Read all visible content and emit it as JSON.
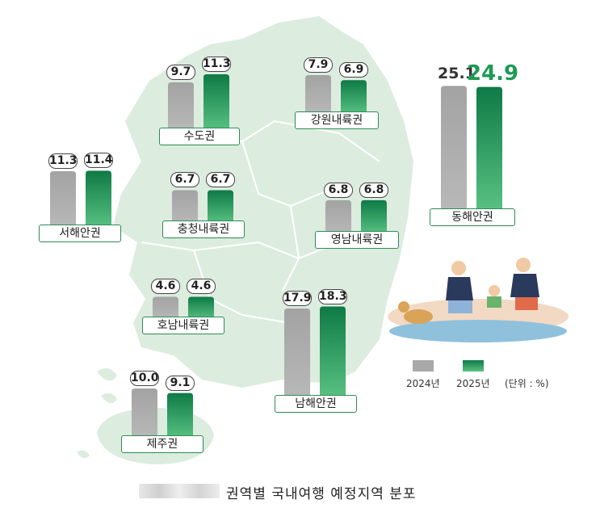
{
  "chart_data": {
    "type": "bar",
    "title": "권역별 국내여행 예정지역 분포",
    "unit_note": "(단위 : %)",
    "series": [
      {
        "name": "2024년",
        "color": "#a9a9a9"
      },
      {
        "name": "2025년",
        "color": "#1e8e4e"
      }
    ],
    "regions": [
      {
        "key": "sudo",
        "label": "수도권",
        "v2024": 9.7,
        "v2025": 11.3,
        "t2024": "9.7",
        "t2025": "11.3"
      },
      {
        "key": "gangwon",
        "label": "강원내륙권",
        "v2024": 7.9,
        "v2025": 6.9,
        "t2024": "7.9",
        "t2025": "6.9"
      },
      {
        "key": "donghae",
        "label": "동해안권",
        "v2024": 25.1,
        "v2025": 24.9,
        "t2024": "25.1",
        "t2025": "24.9"
      },
      {
        "key": "seohae",
        "label": "서해안권",
        "v2024": 11.3,
        "v2025": 11.4,
        "t2024": "11.3",
        "t2025": "11.4"
      },
      {
        "key": "chungcheong",
        "label": "충청내륙권",
        "v2024": 6.7,
        "v2025": 6.7,
        "t2024": "6.7",
        "t2025": "6.7"
      },
      {
        "key": "yeongnam",
        "label": "영남내륙권",
        "v2024": 6.8,
        "v2025": 6.8,
        "t2024": "6.8",
        "t2025": "6.8"
      },
      {
        "key": "honam",
        "label": "호남내륙권",
        "v2024": 4.6,
        "v2025": 4.6,
        "t2024": "4.6",
        "t2025": "4.6"
      },
      {
        "key": "namhae",
        "label": "남해안권",
        "v2024": 17.9,
        "v2025": 18.3,
        "t2024": "17.9",
        "t2025": "18.3"
      },
      {
        "key": "jeju",
        "label": "제주권",
        "v2024": 10.0,
        "v2025": 9.1,
        "t2024": "10.0",
        "t2025": "9.1"
      }
    ]
  },
  "legend": {
    "y2024": "2024년",
    "y2025": "2025년",
    "unit": "(단위 : %)"
  },
  "caption": "권역별 국내여행 예정지역 분포",
  "colors": {
    "map": "#dfeee3",
    "accent": "#1e8e4e",
    "gray": "#a9a9a9"
  }
}
